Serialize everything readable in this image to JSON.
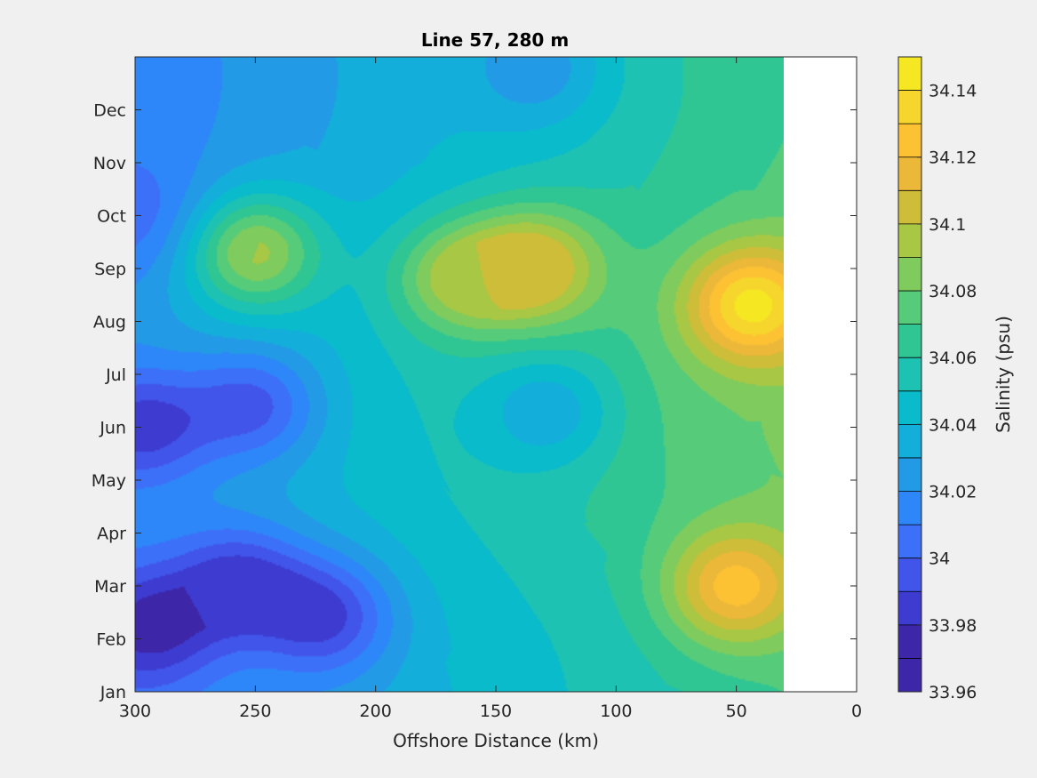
{
  "chart_data": {
    "type": "contourf",
    "title": "Line 57, 280 m",
    "xlabel": "Offshore Distance (km)",
    "colorbar_label": "Salinity (psu)",
    "x_ticks": [
      300,
      250,
      200,
      150,
      100,
      50,
      0
    ],
    "x_tick_labels": [
      "300",
      "250",
      "200",
      "150",
      "100",
      "50",
      "0"
    ],
    "xlim": [
      300,
      0
    ],
    "x_reversed": true,
    "y_ticks": [
      "Jan",
      "Feb",
      "Mar",
      "Apr",
      "May",
      "Jun",
      "Jul",
      "Aug",
      "Sep",
      "Oct",
      "Nov",
      "Dec"
    ],
    "ylim_months": [
      1,
      13
    ],
    "data_extent_x_km": [
      300,
      30
    ],
    "colorbar_ticks": [
      "33.96",
      "33.98",
      "34",
      "34.02",
      "34.04",
      "34.06",
      "34.08",
      "34.1",
      "34.12",
      "34.14"
    ],
    "colorbar_range": [
      33.96,
      34.15
    ],
    "contour_levels": [
      33.96,
      33.97,
      33.98,
      33.99,
      34.0,
      34.01,
      34.02,
      34.03,
      34.04,
      34.05,
      34.06,
      34.07,
      34.08,
      34.09,
      34.1,
      34.11,
      34.12,
      34.13,
      34.14,
      34.15
    ],
    "level_colors": [
      "#3e26a8",
      "#3d3bd0",
      "#4155ea",
      "#3d70f8",
      "#2e87f8",
      "#239ae6",
      "#14aedb",
      "#0abbcc",
      "#1dc2b2",
      "#30c694",
      "#56cb7a",
      "#7fcb5d",
      "#a8c744",
      "#cdbd39",
      "#ebb83a",
      "#fdc134",
      "#f6d62c",
      "#f5e823"
    ],
    "colormap": "parula",
    "features": [
      {
        "x": 43,
        "y_month": 8.3,
        "salinity": 34.145
      },
      {
        "x": 133,
        "y_month": 9.0,
        "salinity": 34.11
      },
      {
        "x": 250,
        "y_month": 9.3,
        "salinity": 34.09
      },
      {
        "x": 165,
        "y_month": 8.8,
        "salinity": 34.09
      },
      {
        "x": 50,
        "y_month": 3.0,
        "salinity": 34.125
      },
      {
        "x": 295,
        "y_month": 2.2,
        "salinity": 33.965
      },
      {
        "x": 222,
        "y_month": 2.4,
        "salinity": 33.978
      },
      {
        "x": 258,
        "y_month": 3.0,
        "salinity": 33.975
      },
      {
        "x": 252,
        "y_month": 6.4,
        "salinity": 33.988
      },
      {
        "x": 298,
        "y_month": 6.0,
        "salinity": 33.975
      },
      {
        "x": 298,
        "y_month": 10.0,
        "salinity": 33.995
      },
      {
        "x": 130,
        "y_month": 6.3,
        "salinity": 34.025
      },
      {
        "x": 135,
        "y_month": 12.8,
        "salinity": 34.015
      }
    ]
  }
}
